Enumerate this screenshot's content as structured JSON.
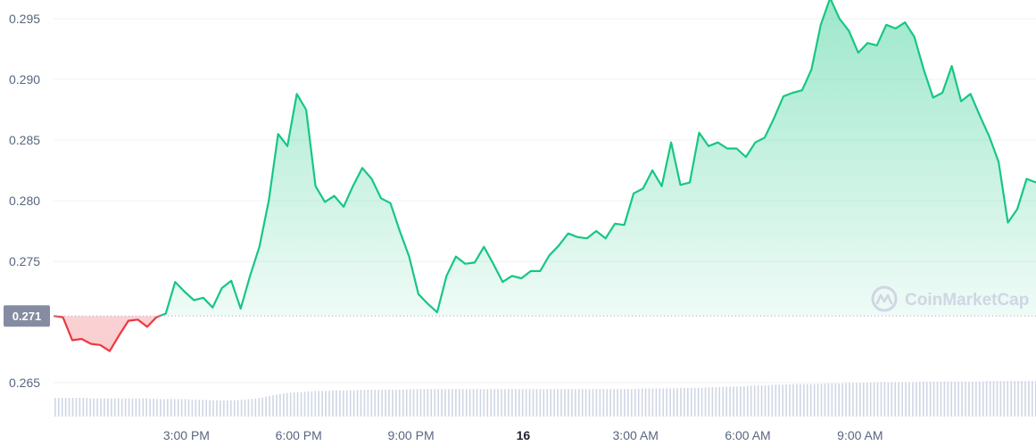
{
  "chart_data": {
    "type": "line",
    "x_ticks": [
      "3:00 PM",
      "6:00 PM",
      "9:00 PM",
      "16",
      "3:00 AM",
      "6:00 AM",
      "9:00 AM"
    ],
    "y_ticks": [
      "0.295",
      "0.290",
      "0.285",
      "0.280",
      "0.275",
      "0.265"
    ],
    "ylim": [
      0.2625,
      0.2975
    ],
    "open_price_label": "0.271",
    "open_price": 0.2705,
    "watermark": "CoinMarketCap",
    "grid": true,
    "colors": {
      "up": "#16c784",
      "down": "#ea3943",
      "volume": "#cfd6e4",
      "badge": "#858ca2"
    },
    "series": [
      {
        "hours": [
          0,
          0.25,
          0.5,
          0.75,
          1,
          1.25,
          1.5,
          1.75,
          2,
          2.25,
          2.5,
          2.75,
          3,
          3.25,
          3.5,
          3.75,
          4,
          4.25,
          4.5,
          4.75,
          5,
          5.25,
          5.5,
          5.75,
          6,
          6.25,
          6.5,
          6.75,
          7,
          7.25,
          7.5,
          7.75,
          8,
          8.25,
          8.5,
          8.75,
          9,
          9.25,
          9.5,
          9.75,
          10,
          10.25,
          10.5,
          10.75,
          11,
          11.25,
          11.5,
          11.75,
          12,
          12.25,
          12.5,
          12.75,
          13,
          13.25,
          13.5,
          13.75,
          14,
          14.25,
          14.5,
          14.75,
          15,
          15.25,
          15.5,
          15.75,
          16,
          16.25,
          16.5,
          16.75,
          17,
          17.25,
          17.5,
          17.75,
          18,
          18.25,
          18.5,
          18.75,
          19,
          19.25,
          19.5,
          19.75,
          20,
          20.25,
          20.5,
          20.75,
          21,
          21.25,
          21.5,
          21.75,
          22,
          22.25,
          22.5,
          22.75,
          23,
          23.25,
          23.5,
          23.75,
          24,
          24.25,
          24.5,
          24.75,
          25,
          25.25,
          25.5,
          25.75,
          26,
          26.25
        ],
        "price": [
          0.2705,
          0.2704,
          0.2685,
          0.2686,
          0.2682,
          0.2681,
          0.2676,
          0.2689,
          0.2701,
          0.2702,
          0.2696,
          0.2704,
          0.2707,
          0.2733,
          0.2725,
          0.2718,
          0.272,
          0.2712,
          0.2728,
          0.2734,
          0.2711,
          0.2738,
          0.2762,
          0.28,
          0.2855,
          0.2845,
          0.2888,
          0.2875,
          0.2812,
          0.2799,
          0.2804,
          0.2795,
          0.2812,
          0.2827,
          0.2818,
          0.2802,
          0.2798,
          0.2775,
          0.2754,
          0.2723,
          0.2715,
          0.2708,
          0.2738,
          0.2754,
          0.2748,
          0.2749,
          0.2762,
          0.2748,
          0.2733,
          0.2738,
          0.2736,
          0.2742,
          0.2742,
          0.2755,
          0.2763,
          0.2773,
          0.277,
          0.2769,
          0.2775,
          0.2769,
          0.2781,
          0.278,
          0.2806,
          0.281,
          0.2825,
          0.2812,
          0.2848,
          0.2813,
          0.2815,
          0.2856,
          0.2845,
          0.2848,
          0.2843,
          0.2843,
          0.2836,
          0.2848,
          0.2852,
          0.2868,
          0.2886,
          0.2889,
          0.2891,
          0.2908,
          0.2945,
          0.2967,
          0.295,
          0.294,
          0.2922,
          0.293,
          0.2928,
          0.2945,
          0.2942,
          0.2947,
          0.2935,
          0.2908,
          0.2885,
          0.2889,
          0.2911,
          0.2882,
          0.2888,
          0.287,
          0.2853,
          0.2832,
          0.2782,
          0.2793,
          0.2818,
          0.2815
        ],
        "volume_relative": [
          0.3,
          0.3,
          0.3,
          0.3,
          0.29,
          0.29,
          0.29,
          0.29,
          0.29,
          0.29,
          0.29,
          0.28,
          0.28,
          0.28,
          0.28,
          0.27,
          0.27,
          0.26,
          0.26,
          0.26,
          0.27,
          0.28,
          0.3,
          0.33,
          0.36,
          0.38,
          0.39,
          0.4,
          0.41,
          0.41,
          0.42,
          0.42,
          0.42,
          0.43,
          0.43,
          0.43,
          0.43,
          0.43,
          0.44,
          0.44,
          0.44,
          0.44,
          0.44,
          0.44,
          0.44,
          0.44,
          0.44,
          0.44,
          0.44,
          0.44,
          0.44,
          0.44,
          0.44,
          0.44,
          0.44,
          0.44,
          0.44,
          0.44,
          0.44,
          0.44,
          0.44,
          0.44,
          0.44,
          0.45,
          0.45,
          0.45,
          0.45,
          0.46,
          0.46,
          0.46,
          0.47,
          0.47,
          0.48,
          0.48,
          0.49,
          0.5,
          0.5,
          0.51,
          0.51,
          0.52,
          0.52,
          0.52,
          0.53,
          0.53,
          0.53,
          0.54,
          0.54,
          0.54,
          0.55,
          0.55,
          0.55,
          0.55,
          0.55,
          0.56,
          0.56,
          0.56,
          0.56,
          0.56,
          0.56,
          0.56,
          0.57,
          0.57,
          0.57,
          0.57,
          0.57,
          0.57
        ]
      }
    ]
  }
}
